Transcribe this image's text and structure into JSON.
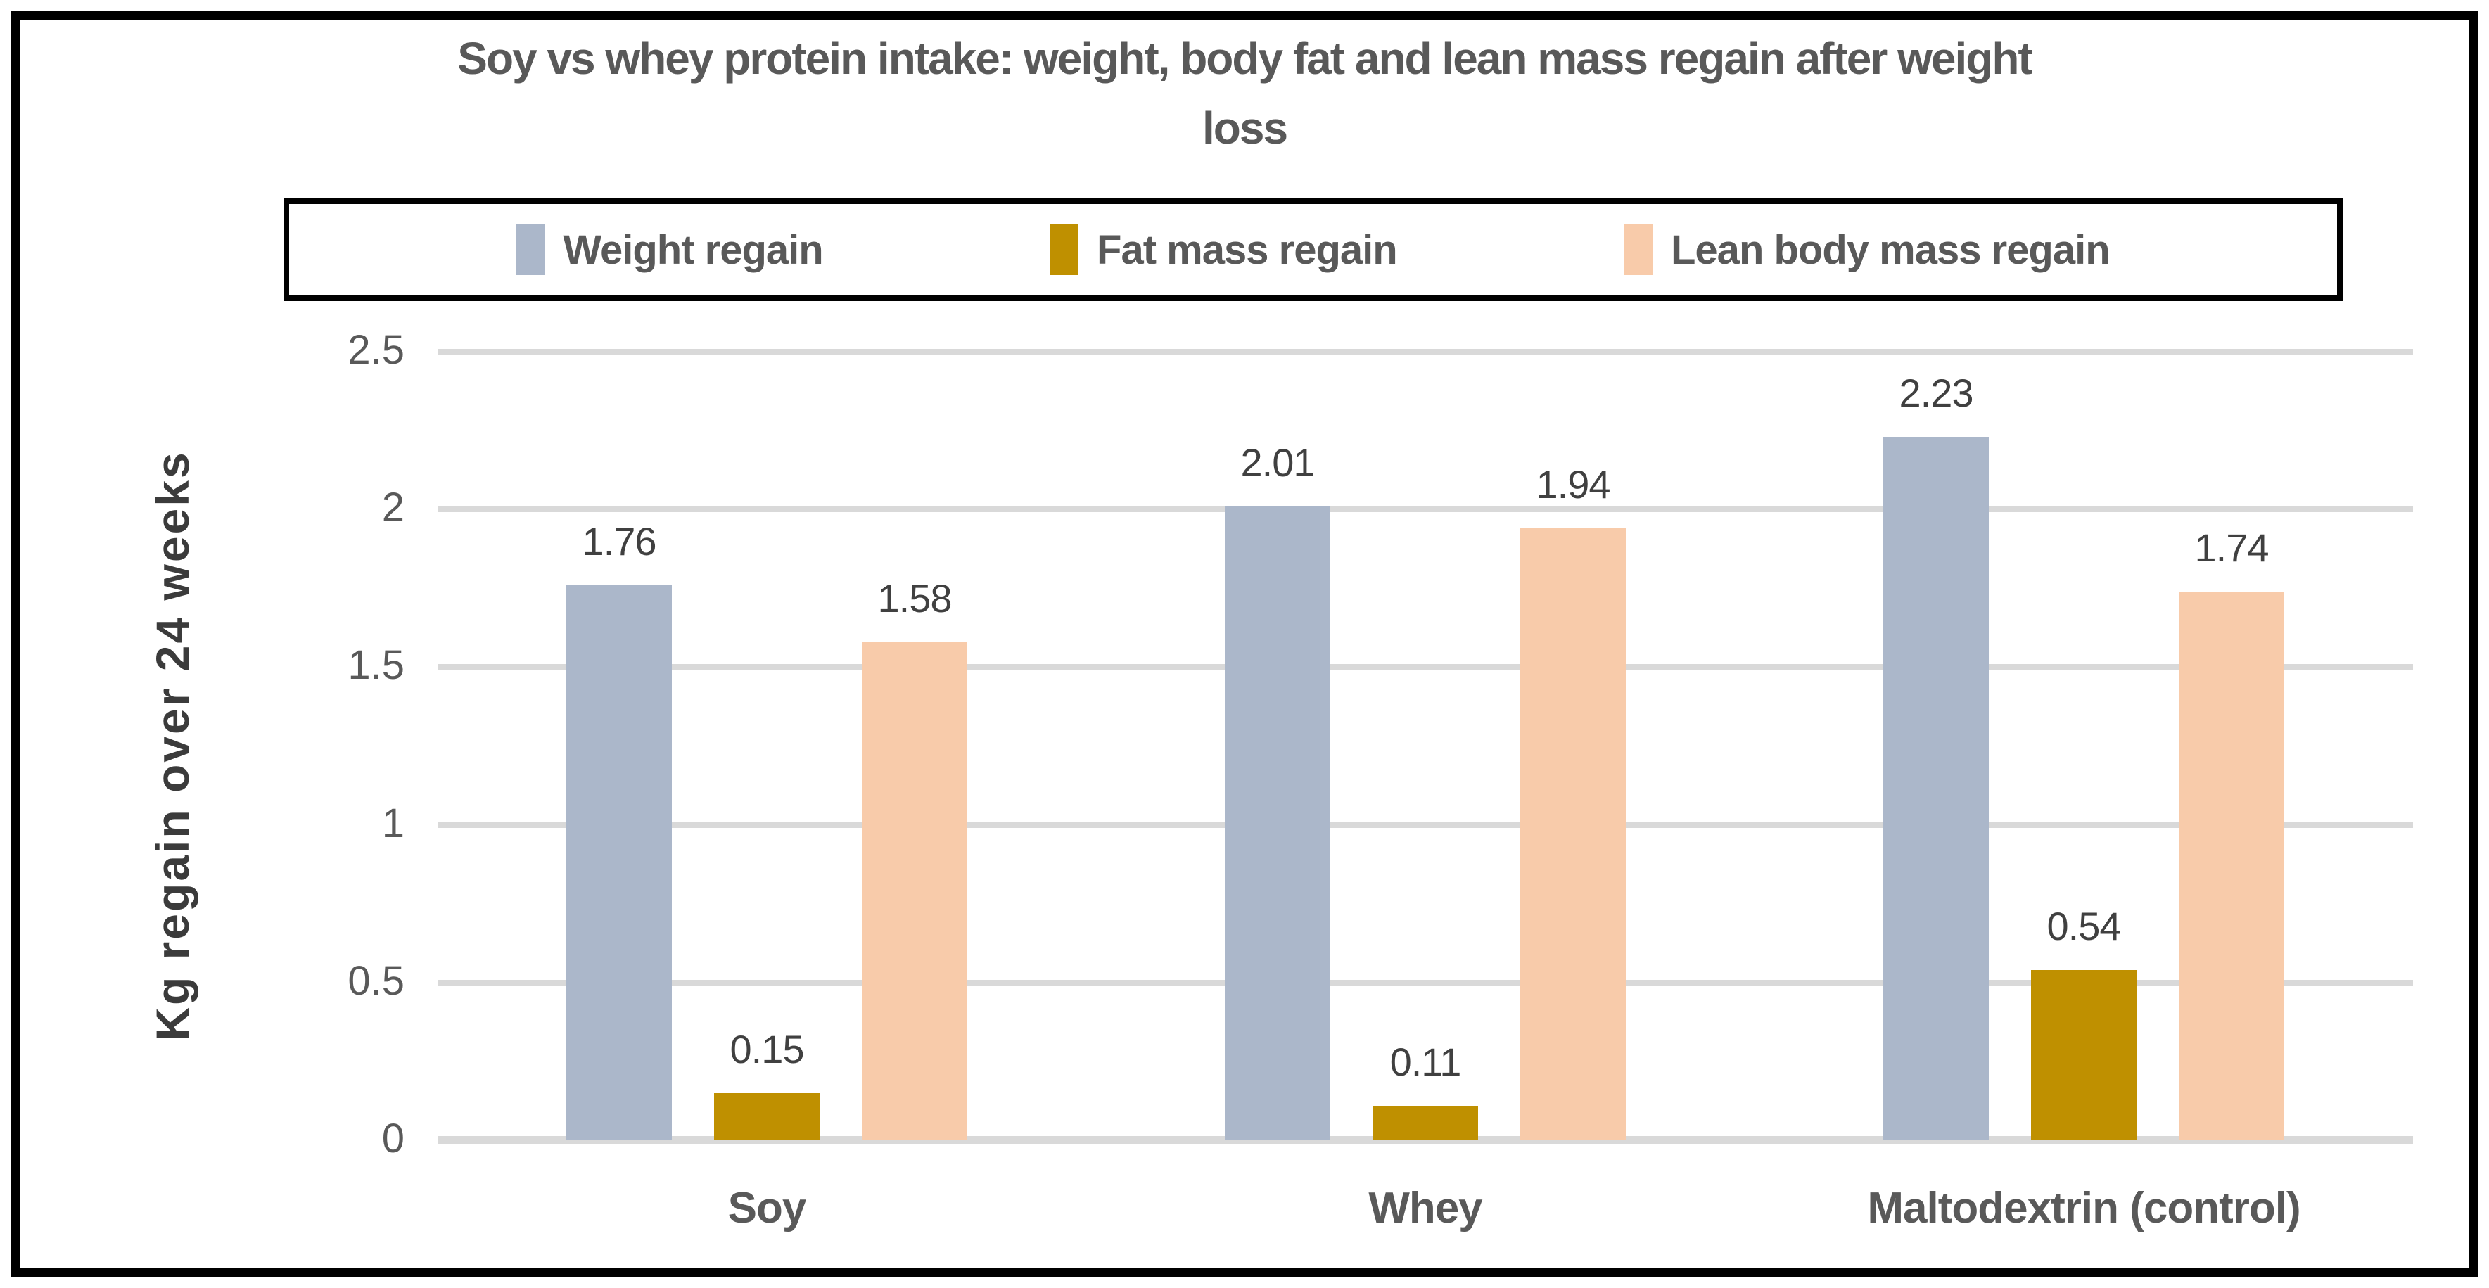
{
  "figure": {
    "title": "Soy vs whey protein intake: weight, body fat and lean mass regain after weight loss"
  },
  "colors": {
    "weight_regain": "#abb7ca",
    "fat_mass_regain": "#bf9000",
    "lean_body_mass_regain": "#f8cbaa",
    "gridline": "#d9d9d9",
    "text_gray": "#595959"
  },
  "chart_data": {
    "type": "bar",
    "title": "Soy vs whey protein intake: weight, body fat and lean mass regain after weight loss",
    "categories": [
      "Soy",
      "Whey",
      "Maltodextrin (control)"
    ],
    "series": [
      {
        "name": "Weight regain",
        "color": "#abb7ca",
        "values": [
          1.76,
          2.01,
          2.23
        ]
      },
      {
        "name": "Fat mass regain",
        "color": "#bf9000",
        "values": [
          0.15,
          0.11,
          0.54
        ]
      },
      {
        "name": "Lean body mass regain",
        "color": "#f8cbaa",
        "values": [
          1.58,
          1.94,
          1.74
        ]
      }
    ],
    "xlabel": "",
    "ylabel": "Kg regain over 24 weeks",
    "ylim": [
      0,
      2.5
    ],
    "yticks": [
      0,
      0.5,
      1,
      1.5,
      2,
      2.5
    ],
    "ytick_labels": [
      "0",
      "0.5",
      "1",
      "1.5",
      "2",
      "2.5"
    ],
    "grid": true,
    "legend_position": "top",
    "value_labels": true
  }
}
